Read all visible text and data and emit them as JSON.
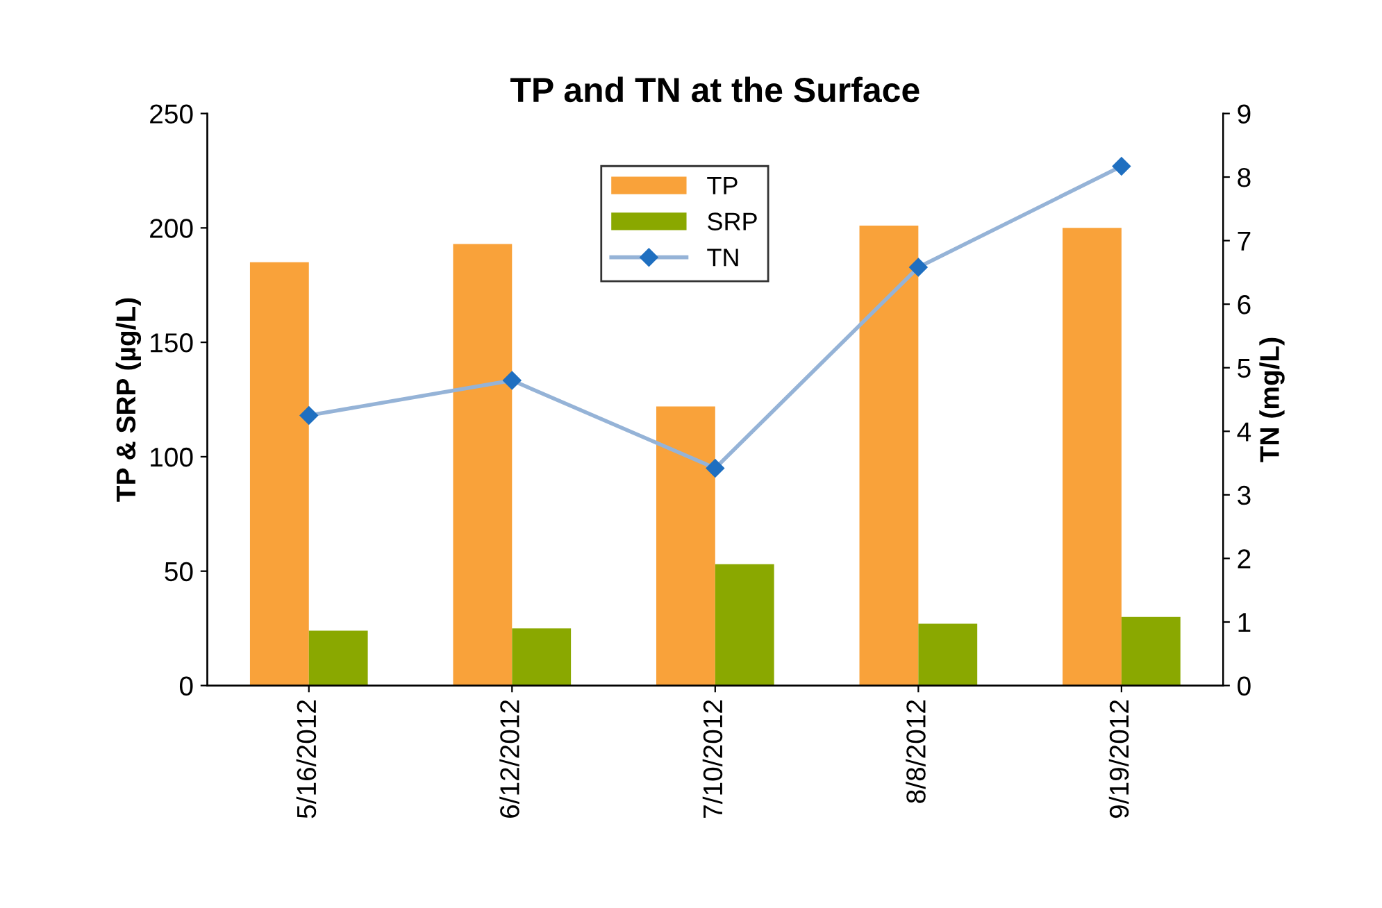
{
  "chart_data": {
    "type": "bar",
    "title": "TP and TN at the Surface",
    "ylabel": "TP & SRP (µg/L)",
    "y2label": "TN (mg/L)",
    "categories": [
      "5/16/2012",
      "6/12/2012",
      "7/10/2012",
      "8/8/2012",
      "9/19/2012"
    ],
    "series": [
      {
        "name": "TP",
        "color": "#f9a23a",
        "values": [
          185,
          193,
          122,
          201,
          200
        ]
      },
      {
        "name": "SRP",
        "color": "#8aa800",
        "values": [
          24,
          25,
          53,
          27,
          30
        ]
      },
      {
        "name": "TN",
        "type": "line",
        "axis": "y2",
        "color": "#95b3d7",
        "values": [
          4.25,
          4.8,
          3.42,
          6.58,
          8.17
        ]
      }
    ],
    "ylim": [
      0,
      250
    ],
    "yticks": [
      0,
      50,
      100,
      150,
      200,
      250
    ],
    "y2lim": [
      0,
      9
    ],
    "y2ticks": [
      0,
      1,
      2,
      3,
      4,
      5,
      6,
      7,
      8,
      9
    ],
    "marker": "diamond",
    "line_style": "solid",
    "grid": false,
    "legend": "top"
  }
}
